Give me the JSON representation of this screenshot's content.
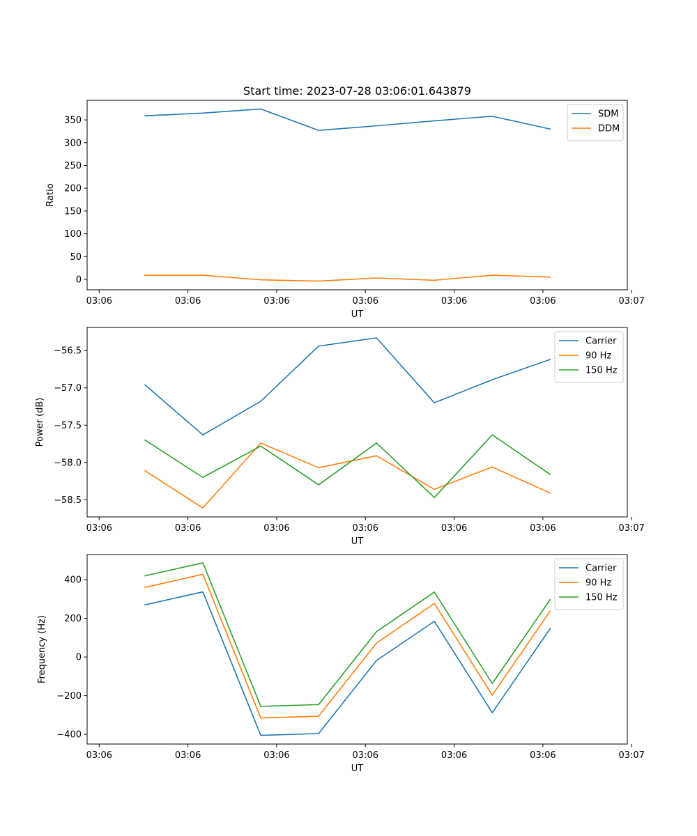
{
  "chart_data": [
    {
      "type": "line",
      "title": "Start time: 2023-07-28 03:06:01.643879",
      "xlabel": "UT",
      "ylabel": "Ratio",
      "x": [
        0.6,
        1.2,
        1.8,
        2.4,
        3.0,
        3.6,
        4.2,
        4.8
      ],
      "xlim": [
        0,
        5.6
      ],
      "xticks": [
        0.125,
        1.045,
        1.965,
        2.885,
        3.805,
        4.725,
        5.645
      ],
      "xtick_labels": [
        "03:06",
        "03:06",
        "03:06",
        "03:06",
        "03:06",
        "03:06",
        "03:07"
      ],
      "ylim": [
        -23,
        393
      ],
      "yticks": [
        0,
        50,
        100,
        150,
        200,
        250,
        300,
        350
      ],
      "ytick_labels": [
        "0",
        "50",
        "100",
        "150",
        "200",
        "250",
        "300",
        "350"
      ],
      "series": [
        {
          "name": "SDM",
          "color": "#1f77b4",
          "values": [
            359,
            365,
            374,
            327,
            337,
            348,
            358,
            330
          ]
        },
        {
          "name": "DDM",
          "color": "#ff7f0e",
          "values": [
            9,
            9,
            -1,
            -4,
            3,
            -2,
            9,
            5
          ]
        }
      ],
      "legend": "top-right"
    },
    {
      "type": "line",
      "title": "",
      "xlabel": "UT",
      "ylabel": "Power (dB)",
      "x": [
        0.6,
        1.2,
        1.8,
        2.4,
        3.0,
        3.6,
        4.2,
        4.8
      ],
      "xlim": [
        0,
        5.6
      ],
      "xticks": [
        0.125,
        1.045,
        1.965,
        2.885,
        3.805,
        4.725,
        5.645
      ],
      "xtick_labels": [
        "03:06",
        "03:06",
        "03:06",
        "03:06",
        "03:06",
        "03:06",
        "03:07"
      ],
      "ylim": [
        -58.73,
        -56.19
      ],
      "yticks": [
        -58.5,
        -58.0,
        -57.5,
        -57.0,
        -56.5
      ],
      "ytick_labels": [
        "−58.5",
        "−58.0",
        "−57.5",
        "−57.0",
        "−56.5"
      ],
      "series": [
        {
          "name": "Carrier",
          "color": "#1f77b4",
          "values": [
            -56.96,
            -57.63,
            -57.18,
            -56.44,
            -56.33,
            -57.2,
            -56.89,
            -56.62
          ]
        },
        {
          "name": "90 Hz",
          "color": "#ff7f0e",
          "values": [
            -58.11,
            -58.61,
            -57.74,
            -58.07,
            -57.91,
            -58.36,
            -58.06,
            -58.41
          ]
        },
        {
          "name": "150 Hz",
          "color": "#2ca02c",
          "values": [
            -57.7,
            -58.2,
            -57.78,
            -58.3,
            -57.74,
            -58.47,
            -57.63,
            -58.16
          ]
        }
      ],
      "legend": "top-right"
    },
    {
      "type": "line",
      "title": "",
      "xlabel": "UT",
      "ylabel": "Frequency (Hz)",
      "x": [
        0.6,
        1.2,
        1.8,
        2.4,
        3.0,
        3.6,
        4.2,
        4.8
      ],
      "xlim": [
        0,
        5.6
      ],
      "xticks": [
        0.125,
        1.045,
        1.965,
        2.885,
        3.805,
        4.725,
        5.645
      ],
      "xtick_labels": [
        "03:06",
        "03:06",
        "03:06",
        "03:06",
        "03:06",
        "03:06",
        "03:07"
      ],
      "ylim": [
        -450,
        530
      ],
      "yticks": [
        -400,
        -200,
        0,
        200,
        400
      ],
      "ytick_labels": [
        "−400",
        "−200",
        "0",
        "200",
        "400"
      ],
      "series": [
        {
          "name": "Carrier",
          "color": "#1f77b4",
          "values": [
            270,
            337,
            -405,
            -396,
            -18,
            185,
            -288,
            147
          ]
        },
        {
          "name": "90 Hz",
          "color": "#ff7f0e",
          "values": [
            360,
            428,
            -315,
            -306,
            72,
            277,
            -197,
            237
          ]
        },
        {
          "name": "150 Hz",
          "color": "#2ca02c",
          "values": [
            420,
            487,
            -255,
            -246,
            131,
            336,
            -137,
            297
          ]
        }
      ],
      "legend": "top-right"
    }
  ]
}
